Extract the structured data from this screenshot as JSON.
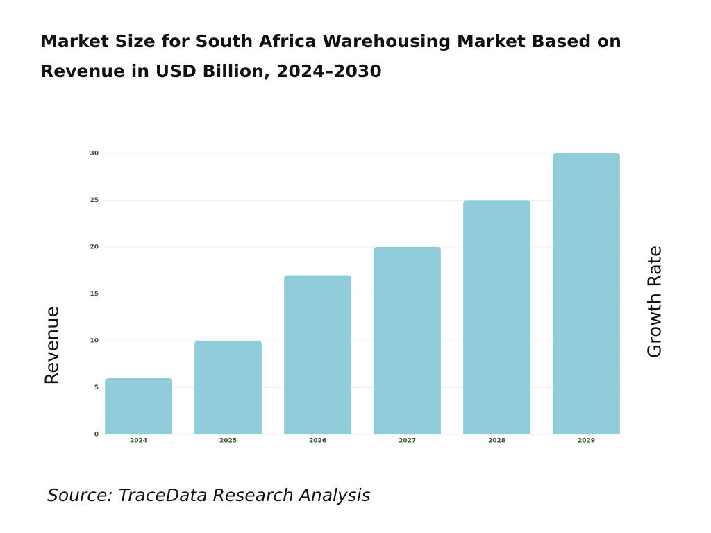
{
  "chart_data": {
    "type": "bar",
    "title": "Market Size for South Africa Warehousing Market Based on Revenue in USD Billion, 2024–2030",
    "y_label": "Revenue",
    "y2_label": "Growth Rate",
    "source": "Source: TraceData Research Analysis",
    "categories": [
      "2024",
      "2025",
      "2026",
      "2027",
      "2028",
      "2029"
    ],
    "values": [
      6,
      10,
      17,
      20,
      25,
      30
    ],
    "color": "#8ecdd9",
    "ylim": [
      0,
      30
    ],
    "yticks": [
      0,
      5,
      10,
      15,
      20,
      25,
      30
    ],
    "grid": true
  }
}
